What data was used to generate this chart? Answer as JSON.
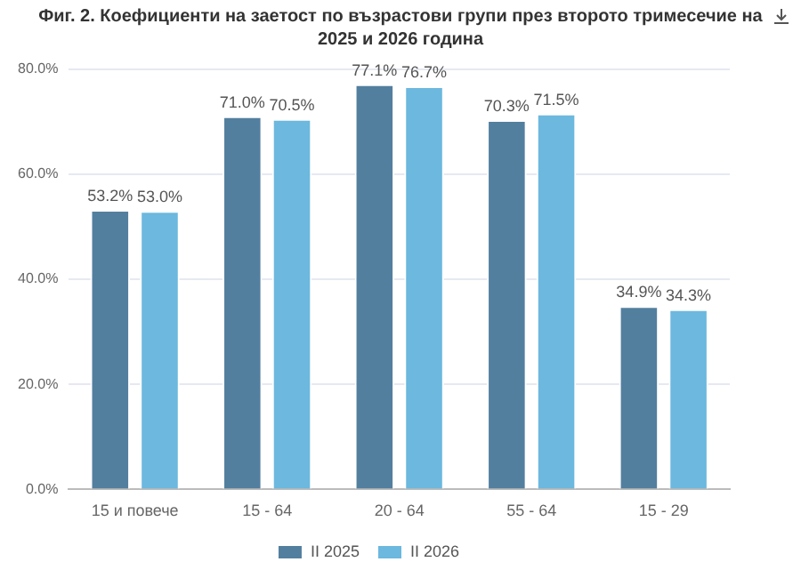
{
  "chart_data": {
    "type": "bar",
    "title": "Фиг. 2. Коефициенти на заетост по възрастови групи през второто тримесечие на 2025 и 2026 година",
    "categories": [
      "15 и повече",
      "15 - 64",
      "20 - 64",
      "55 - 64",
      "15 - 29"
    ],
    "series": [
      {
        "name": "II 2025",
        "color": "#537f9f",
        "values": [
          53.2,
          71.0,
          77.1,
          70.3,
          34.9
        ],
        "value_labels": [
          "53.2%",
          "71.0%",
          "77.1%",
          "70.3%",
          "34.9%"
        ]
      },
      {
        "name": "II 2026",
        "color": "#6cb8de",
        "values": [
          53.0,
          70.5,
          76.7,
          71.5,
          34.3
        ],
        "value_labels": [
          "53.0%",
          "70.5%",
          "76.7%",
          "71.5%",
          "34.3%"
        ]
      }
    ],
    "ylim": [
      0,
      80
    ],
    "yticks": [
      {
        "value": 0,
        "label": "0.0%"
      },
      {
        "value": 20,
        "label": "20.0%"
      },
      {
        "value": 40,
        "label": "40.0%"
      },
      {
        "value": 60,
        "label": "60.0%"
      },
      {
        "value": 80,
        "label": "80.0%"
      }
    ],
    "grid": "y",
    "legend": "bottom"
  }
}
